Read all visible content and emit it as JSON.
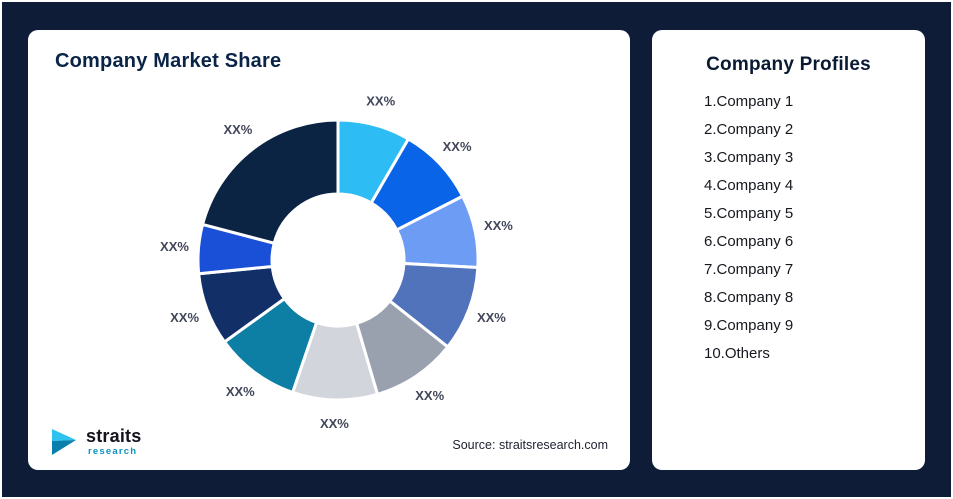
{
  "page": {
    "background": "#0e1c38",
    "card_background": "#ffffff"
  },
  "chart": {
    "title": "Company Market Share",
    "source": "Source: straitsresearch.com"
  },
  "chart_data": {
    "type": "pie",
    "subtype": "donut",
    "title": "Company Market Share",
    "labels": [
      "XX%",
      "XX%",
      "XX%",
      "XX%",
      "XX%",
      "XX%",
      "XX%",
      "XX%",
      "XX%",
      "XX%"
    ],
    "values": [
      8.3,
      9.0,
      8.3,
      9.7,
      9.7,
      9.7,
      9.7,
      8.3,
      5.6,
      20.7
    ],
    "colors": [
      "#2ebcf5",
      "#0a64e8",
      "#6d9cf4",
      "#5173bb",
      "#99a1af",
      "#d2d6dc",
      "#0d7ea4",
      "#122f68",
      "#1a50d8",
      "#0b2444"
    ],
    "start_angle_deg": 0,
    "direction": "clockwise",
    "inner_radius_ratio": 0.47,
    "gap_color": "#ffffff",
    "legend": "none",
    "source": "Source: straitsresearch.com"
  },
  "logo": {
    "name": "straits",
    "subname": "research"
  },
  "profiles": {
    "title": "Company Profiles",
    "items": [
      "1.Company 1",
      "2.Company 2",
      "3.Company 3",
      "4.Company 4",
      "5.Company 5",
      "6.Company 6",
      "7.Company 7",
      "8.Company 8",
      "9.Company 9",
      "10.Others"
    ]
  }
}
